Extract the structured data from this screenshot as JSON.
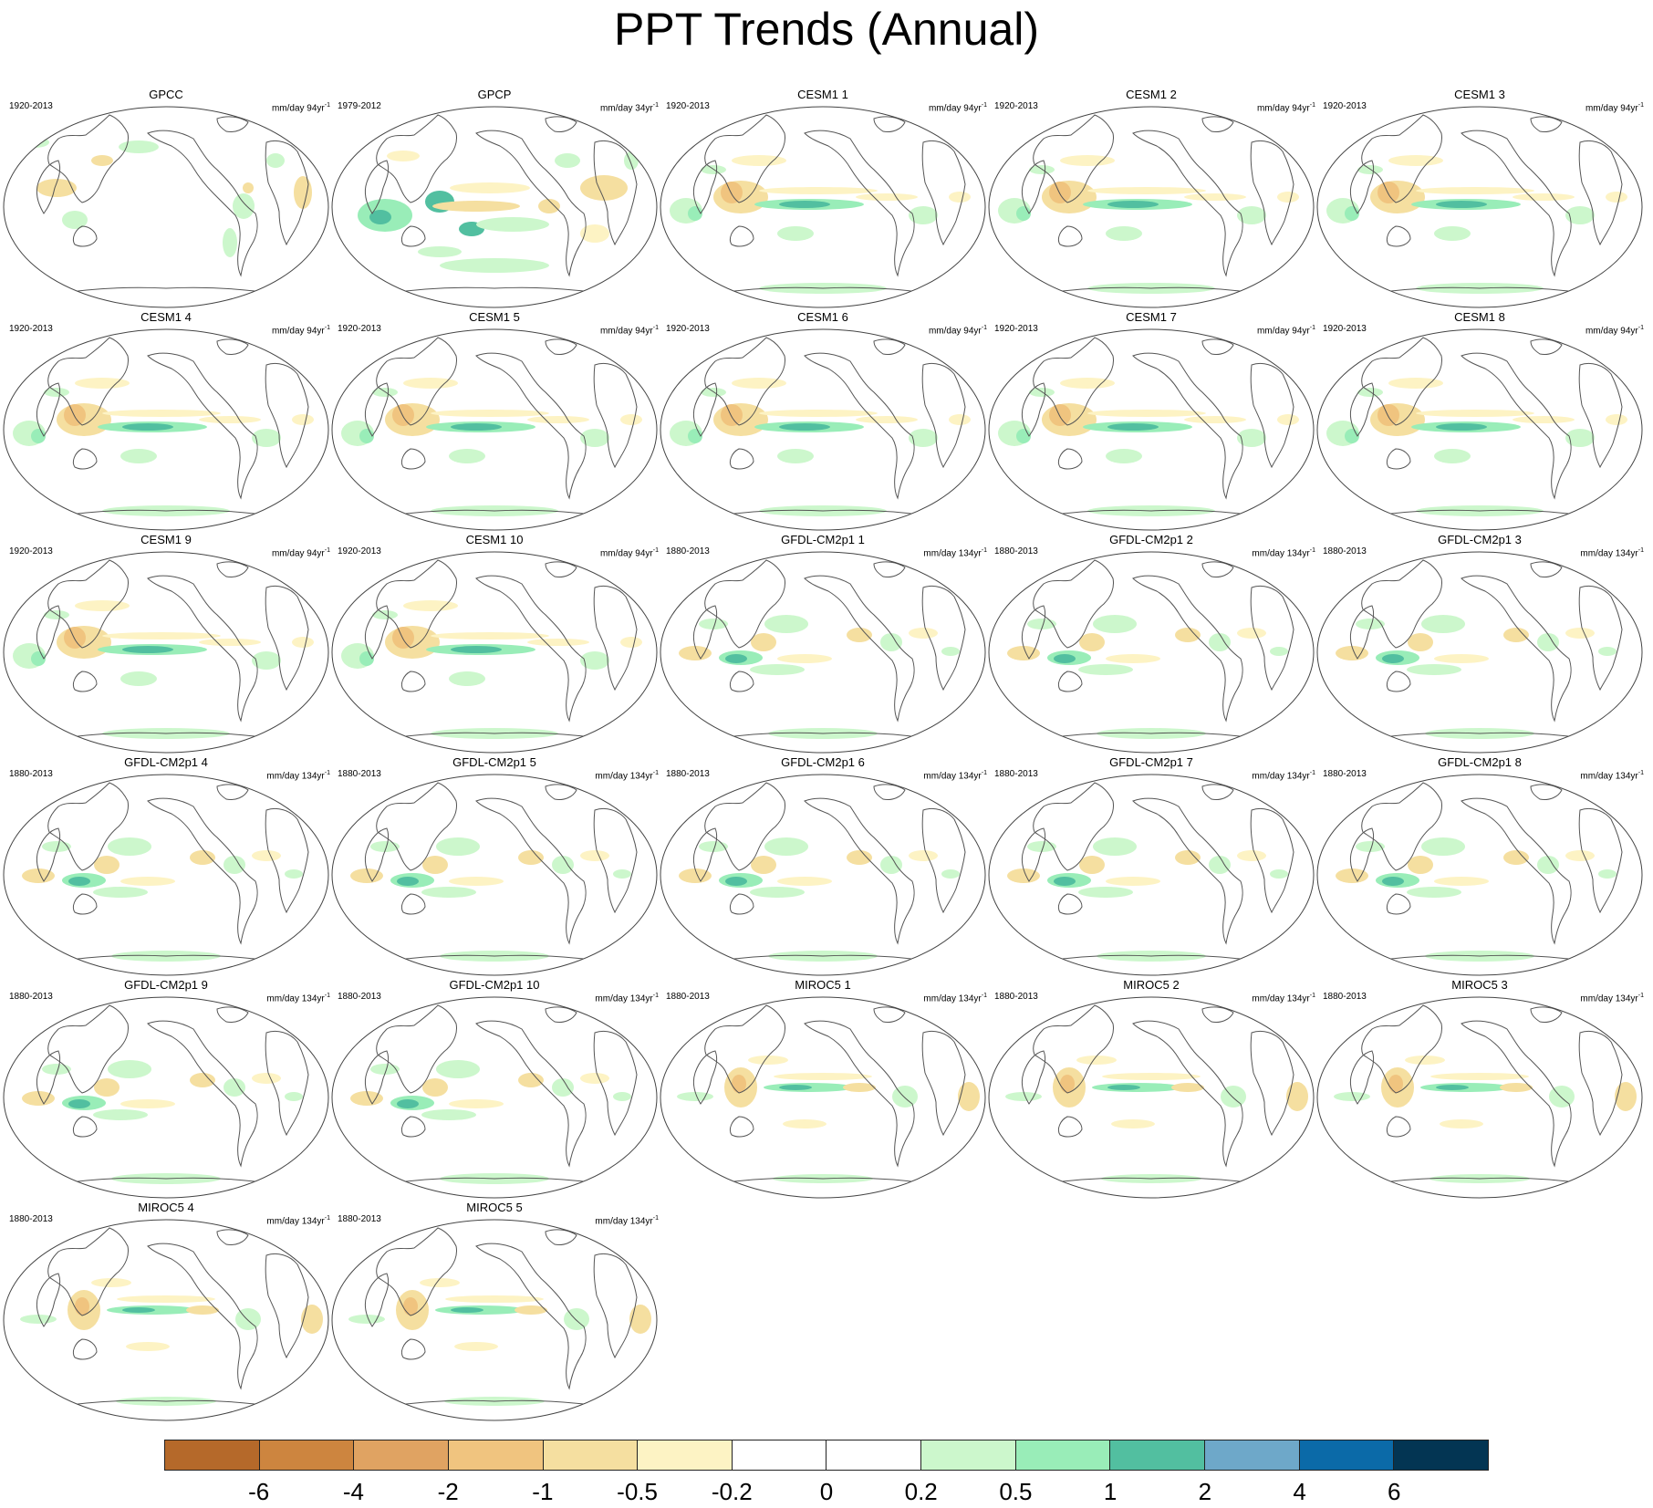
{
  "title": "PPT Trends (Annual)",
  "panels": [
    {
      "title": "GPCC",
      "period": "1920-2013",
      "units": "mm/day 94yr",
      "sup": "-1",
      "pattern": "gpcc"
    },
    {
      "title": "GPCP",
      "period": "1979-2012",
      "units": "mm/day 34yr",
      "sup": "-1",
      "pattern": "gpcp"
    },
    {
      "title": "CESM1 1",
      "period": "1920-2013",
      "units": "mm/day 94yr",
      "sup": "-1",
      "pattern": "cesm"
    },
    {
      "title": "CESM1 2",
      "period": "1920-2013",
      "units": "mm/day 94yr",
      "sup": "-1",
      "pattern": "cesm"
    },
    {
      "title": "CESM1 3",
      "period": "1920-2013",
      "units": "mm/day 94yr",
      "sup": "-1",
      "pattern": "cesm"
    },
    {
      "title": "CESM1 4",
      "period": "1920-2013",
      "units": "mm/day 94yr",
      "sup": "-1",
      "pattern": "cesm"
    },
    {
      "title": "CESM1 5",
      "period": "1920-2013",
      "units": "mm/day 94yr",
      "sup": "-1",
      "pattern": "cesm"
    },
    {
      "title": "CESM1 6",
      "period": "1920-2013",
      "units": "mm/day 94yr",
      "sup": "-1",
      "pattern": "cesm"
    },
    {
      "title": "CESM1 7",
      "period": "1920-2013",
      "units": "mm/day 94yr",
      "sup": "-1",
      "pattern": "cesm"
    },
    {
      "title": "CESM1 8",
      "period": "1920-2013",
      "units": "mm/day 94yr",
      "sup": "-1",
      "pattern": "cesm"
    },
    {
      "title": "CESM1 9",
      "period": "1920-2013",
      "units": "mm/day 94yr",
      "sup": "-1",
      "pattern": "cesm"
    },
    {
      "title": "CESM1 10",
      "period": "1920-2013",
      "units": "mm/day 94yr",
      "sup": "-1",
      "pattern": "cesm"
    },
    {
      "title": "GFDL-CM2p1 1",
      "period": "1880-2013",
      "units": "mm/day 134yr",
      "sup": "-1",
      "pattern": "gfdl"
    },
    {
      "title": "GFDL-CM2p1 2",
      "period": "1880-2013",
      "units": "mm/day 134yr",
      "sup": "-1",
      "pattern": "gfdl"
    },
    {
      "title": "GFDL-CM2p1 3",
      "period": "1880-2013",
      "units": "mm/day 134yr",
      "sup": "-1",
      "pattern": "gfdl"
    },
    {
      "title": "GFDL-CM2p1 4",
      "period": "1880-2013",
      "units": "mm/day 134yr",
      "sup": "-1",
      "pattern": "gfdl"
    },
    {
      "title": "GFDL-CM2p1 5",
      "period": "1880-2013",
      "units": "mm/day 134yr",
      "sup": "-1",
      "pattern": "gfdl"
    },
    {
      "title": "GFDL-CM2p1 6",
      "period": "1880-2013",
      "units": "mm/day 134yr",
      "sup": "-1",
      "pattern": "gfdl"
    },
    {
      "title": "GFDL-CM2p1 7",
      "period": "1880-2013",
      "units": "mm/day 134yr",
      "sup": "-1",
      "pattern": "gfdl"
    },
    {
      "title": "GFDL-CM2p1 8",
      "period": "1880-2013",
      "units": "mm/day 134yr",
      "sup": "-1",
      "pattern": "gfdl"
    },
    {
      "title": "GFDL-CM2p1 9",
      "period": "1880-2013",
      "units": "mm/day 134yr",
      "sup": "-1",
      "pattern": "gfdl"
    },
    {
      "title": "GFDL-CM2p1 10",
      "period": "1880-2013",
      "units": "mm/day 134yr",
      "sup": "-1",
      "pattern": "gfdl"
    },
    {
      "title": "MIROC5 1",
      "period": "1880-2013",
      "units": "mm/day 134yr",
      "sup": "-1",
      "pattern": "miroc"
    },
    {
      "title": "MIROC5 2",
      "period": "1880-2013",
      "units": "mm/day 134yr",
      "sup": "-1",
      "pattern": "miroc"
    },
    {
      "title": "MIROC5 3",
      "period": "1880-2013",
      "units": "mm/day 134yr",
      "sup": "-1",
      "pattern": "miroc"
    },
    {
      "title": "MIROC5 4",
      "period": "1880-2013",
      "units": "mm/day 134yr",
      "sup": "-1",
      "pattern": "miroc"
    },
    {
      "title": "MIROC5 5",
      "period": "1880-2013",
      "units": "mm/day 134yr",
      "sup": "-1",
      "pattern": "miroc"
    }
  ],
  "colorbar": {
    "colors": [
      "#b5692a",
      "#cd853f",
      "#e0a362",
      "#f0c47f",
      "#f5dfa0",
      "#fdf3c4",
      "#ffffff",
      "#ffffff",
      "#ccf7cc",
      "#99edb8",
      "#52bfa0",
      "#6ea8c9",
      "#0b6aa8",
      "#033553"
    ],
    "labels": [
      "-6",
      "-4",
      "-2",
      "-1",
      "-0.5",
      "-0.2",
      "0",
      "0.2",
      "0.5",
      "1",
      "2",
      "4",
      "6"
    ]
  }
}
